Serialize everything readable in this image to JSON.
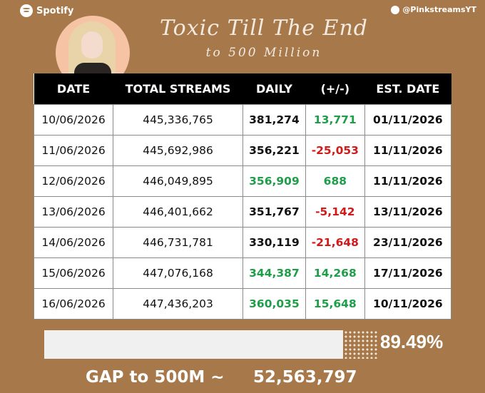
{
  "header": {
    "brand": "Spotify",
    "handle": "@PinkstreamsYT",
    "title": "Toxic Till The End",
    "subtitle": "to 500 Million"
  },
  "table": {
    "columns": [
      "DATE",
      "TOTAL STREAMS",
      "DAILY",
      "(+/-)",
      "EST. DATE"
    ],
    "rows": [
      [
        "10/06/2026",
        "445,336,765",
        "381,274",
        "13,771",
        "01/11/2026"
      ],
      [
        "11/06/2026",
        "445,692,986",
        "356,221",
        "-25,053",
        "11/11/2026"
      ],
      [
        "12/06/2026",
        "446,049,895",
        "356,909",
        "688",
        "11/11/2026"
      ],
      [
        "13/06/2026",
        "446,401,662",
        "351,767",
        "-5,142",
        "13/11/2026"
      ],
      [
        "14/06/2026",
        "446,731,781",
        "330,119",
        "-21,648",
        "23/11/2026"
      ],
      [
        "15/06/2026",
        "447,076,168",
        "344,387",
        "14,268",
        "17/11/2026"
      ],
      [
        "16/06/2026",
        "447,436,203",
        "360,035",
        "15,648",
        "10/11/2026"
      ]
    ]
  },
  "progress": {
    "percent": "89.49%"
  },
  "gap": {
    "label": "GAP to 500M ~",
    "value": "52,563,797"
  }
}
